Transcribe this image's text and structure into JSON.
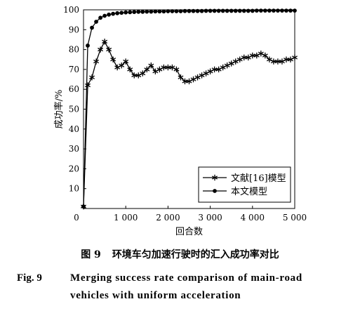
{
  "chart_data": {
    "type": "line",
    "xlabel": "回合数",
    "ylabel": "成功率/%",
    "xlim": [
      0,
      5000
    ],
    "ylim": [
      0,
      100
    ],
    "xticks": [
      0,
      1000,
      2000,
      3000,
      4000,
      5000
    ],
    "xtick_labels": [
      "0",
      "1 000",
      "2 000",
      "3 000",
      "4 000",
      "5 000"
    ],
    "yticks": [
      10,
      20,
      30,
      40,
      50,
      60,
      70,
      80,
      90,
      100
    ],
    "ytick_labels": [
      "10",
      "20",
      "30",
      "40",
      "50",
      "60",
      "70",
      "80",
      "90",
      "100"
    ],
    "grid": false,
    "legend_position": "bottom-right",
    "series": [
      {
        "name": "文献[16]模型",
        "marker": "asterisk",
        "x": [
          0,
          100,
          200,
          300,
          400,
          500,
          600,
          700,
          800,
          900,
          1000,
          1100,
          1200,
          1300,
          1400,
          1500,
          1600,
          1700,
          1800,
          1900,
          2000,
          2100,
          2200,
          2300,
          2400,
          2500,
          2600,
          2700,
          2800,
          2900,
          3000,
          3100,
          3200,
          3300,
          3400,
          3500,
          3600,
          3700,
          3800,
          3900,
          4000,
          4100,
          4200,
          4300,
          4400,
          4500,
          4600,
          4700,
          4800,
          4900,
          5000
        ],
        "values": [
          1,
          62,
          66,
          74,
          80,
          84,
          80,
          75,
          71,
          72,
          74,
          70,
          67,
          67,
          68,
          70,
          72,
          69,
          70,
          71,
          71,
          71,
          70,
          66,
          64,
          64,
          65,
          66,
          67,
          68,
          69,
          70,
          70,
          71,
          72,
          73,
          74,
          75,
          76,
          76,
          77,
          77,
          78,
          77,
          75,
          74,
          74,
          74,
          75,
          75,
          76
        ]
      },
      {
        "name": "本文模型",
        "marker": "dot",
        "x": [
          0,
          100,
          200,
          300,
          400,
          500,
          600,
          700,
          800,
          900,
          1000,
          1100,
          1200,
          1300,
          1400,
          1500,
          1600,
          1700,
          1800,
          1900,
          2000,
          2100,
          2200,
          2300,
          2400,
          2500,
          2600,
          2700,
          2800,
          2900,
          3000,
          3100,
          3200,
          3300,
          3400,
          3500,
          3600,
          3700,
          3800,
          3900,
          4000,
          4100,
          4200,
          4300,
          4400,
          4500,
          4600,
          4700,
          4800,
          4900,
          5000
        ],
        "values": [
          1,
          82,
          91,
          94,
          96,
          97,
          97.6,
          98,
          98.3,
          98.5,
          98.7,
          98.8,
          98.9,
          99,
          99,
          99.1,
          99.1,
          99.2,
          99.2,
          99.2,
          99.3,
          99.3,
          99.3,
          99.3,
          99.4,
          99.4,
          99.4,
          99.4,
          99.4,
          99.5,
          99.5,
          99.5,
          99.5,
          99.5,
          99.5,
          99.5,
          99.5,
          99.5,
          99.5,
          99.5,
          99.5,
          99.6,
          99.6,
          99.6,
          99.6,
          99.6,
          99.6,
          99.6,
          99.6,
          99.6,
          99.6
        ]
      }
    ]
  },
  "caption": {
    "cn_num": "图 9",
    "cn_text": "环境车匀加速行驶时的汇入成功率对比",
    "en_num": "Fig. 9",
    "en_line1": "Merging success rate comparison of main-road",
    "en_line2": "vehicles with uniform acceleration"
  }
}
